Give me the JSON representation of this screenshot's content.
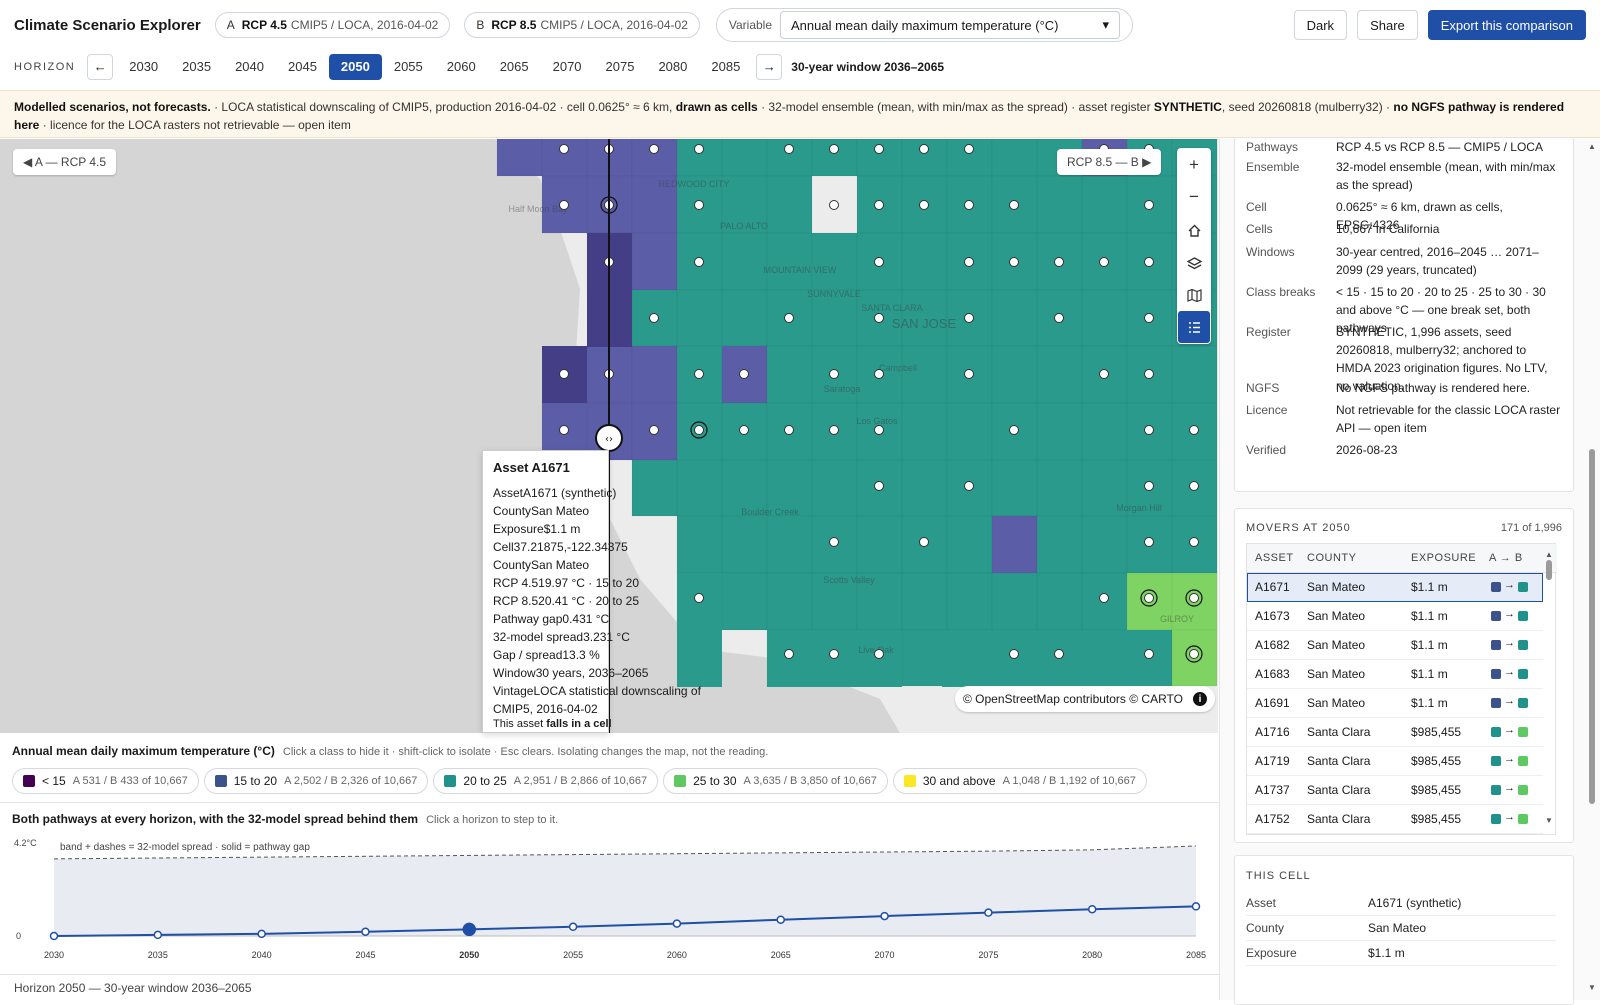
{
  "app": {
    "title": "Climate Scenario Explorer"
  },
  "scenario_a": {
    "letter": "A",
    "name": "RCP 4.5",
    "detail": "CMIP5 / LOCA, 2016-04-02"
  },
  "scenario_b": {
    "letter": "B",
    "name": "RCP 8.5",
    "detail": "CMIP5 / LOCA, 2016-04-02"
  },
  "variable": {
    "label": "Variable",
    "value": "Annual mean daily maximum temperature (°C)"
  },
  "toolbar": {
    "dark": "Dark",
    "share": "Share",
    "export": "Export this comparison"
  },
  "horizon": {
    "label": "HORIZON",
    "years": [
      "2030",
      "2035",
      "2040",
      "2045",
      "2050",
      "2055",
      "2060",
      "2065",
      "2070",
      "2075",
      "2080",
      "2085"
    ],
    "selected": "2050",
    "window": "30-year window 2036–2065"
  },
  "banner": {
    "lead": "Modelled scenarios, not forecasts.",
    "t1": " · LOCA statistical downscaling of CMIP5, production 2016-04-02 · cell 0.0625° ≈ 6 km, ",
    "b1": "drawn as cells",
    "t2": " · 32-model ensemble (mean, with min/max as the spread) · asset register ",
    "b2": "SYNTHETIC",
    "t3": ", seed 20260818 (mulberry32) · ",
    "b3": "no NGFS pathway is rendered here",
    "t4": " · licence for the LOCA rasters not retrievable — open item"
  },
  "map": {
    "label_a": "◀ A — RCP 4.5",
    "label_b": "RCP 8.5 — B ▶",
    "attribution": "© OpenStreetMap contributors © CARTO",
    "places": [
      "Half Moon Bay",
      "REDWOOD CITY",
      "PALO ALTO",
      "MOUNTAIN VIEW",
      "SUNNYVALE",
      "SANTA CLARA",
      "SAN JOSE",
      "Campbell",
      "Saratoga",
      "Los Gatos",
      "Boulder Creek",
      "Morgan Hill",
      "Scotts Valley",
      "Live Oak",
      "GILROY"
    ],
    "colors": {
      "c15": "#433e85",
      "c15b": "#5b5ea6",
      "c20": "#2a9a8c",
      "c25": "#7ed363",
      "c30": "#fde725"
    }
  },
  "tooltip": {
    "title": "Asset A1671",
    "rows": [
      [
        "Asset",
        "A1671 (synthetic)"
      ],
      [
        "County",
        "San Mateo"
      ],
      [
        "Exposure",
        "$1.1 m"
      ],
      [
        "Cell",
        "37.21875,-122.34375"
      ],
      [
        "County",
        "San Mateo"
      ],
      [
        "RCP 4.5",
        "19.97 °C · 15 to 20"
      ],
      [
        "RCP 8.5",
        "20.41 °C · 20 to 25"
      ],
      [
        "Pathway gap",
        "0.431 °C"
      ],
      [
        "32-model spread",
        "3.231 °C"
      ],
      [
        "Gap / spread",
        "13.3 %"
      ],
      [
        "Window",
        "30 years, 2036–2065"
      ],
      [
        "Vintage",
        "LOCA statistical downscaling of"
      ],
      [
        "",
        "CMIP5, 2016-04-02"
      ]
    ],
    "foot_pre": "This asset ",
    "foot_bold": "falls in a cell"
  },
  "legend": {
    "title": "Annual mean daily maximum temperature (°C)",
    "hint": "Click a class to hide it · shift-click to isolate · Esc clears. Isolating changes the map, not the reading.",
    "classes": [
      {
        "label": "< 15",
        "counts": "A 531 / B 433 of 10,667",
        "color": "#440154"
      },
      {
        "label": "15 to 20",
        "counts": "A 2,502 / B 2,326 of 10,667",
        "color": "#3b528b"
      },
      {
        "label": "20 to 25",
        "counts": "A 2,951 / B 2,866 of 10,667",
        "color": "#21918c"
      },
      {
        "label": "25 to 30",
        "counts": "A 3,635 / B 3,850 of 10,667",
        "color": "#5ec962"
      },
      {
        "label": "30 and above",
        "counts": "A 1,048 / B 1,192 of 10,667",
        "color": "#fde725"
      }
    ]
  },
  "chart": {
    "title": "Both pathways at every horizon, with the 32-model spread behind them",
    "hint": "Click a horizon to step to it.",
    "note": "band + dashes = 32-model spread · solid = pathway gap"
  },
  "chart_data": {
    "type": "line",
    "x": [
      2030,
      2035,
      2040,
      2045,
      2050,
      2055,
      2060,
      2065,
      2070,
      2075,
      2080,
      2085
    ],
    "series": [
      {
        "values": [
          0.0,
          0.05,
          0.1,
          0.2,
          0.31,
          0.43,
          0.58,
          0.76,
          0.93,
          1.09,
          1.25,
          1.38
        ]
      }
    ],
    "spread_upper": [
      3.6,
      3.64,
      3.68,
      3.72,
      3.76,
      3.8,
      3.84,
      3.88,
      3.92,
      3.96,
      4.02,
      4.2
    ],
    "ytick_labels": [
      "4.2°C",
      "0"
    ],
    "ylim": [
      0,
      4.2
    ],
    "highlight_x": 2050,
    "legend": "none"
  },
  "details": {
    "rows": [
      [
        "Pathways",
        "RCP 4.5 vs RCP 8.5 — CMIP5 / LOCA"
      ],
      [
        "Ensemble",
        "32-model ensemble (mean, with min/max as the spread)"
      ],
      [
        "Cell",
        "0.0625° ≈ 6 km, drawn as cells, EPSG:4326"
      ],
      [
        "Cells",
        "10,667 in California"
      ],
      [
        "Windows",
        "30-year centred, 2016–2045 … 2071–2099 (29 years, truncated)"
      ],
      [
        "Class breaks",
        "< 15 · 15 to 20 · 20 to 25 · 25 to 30 · 30 and above °C — one break set, both pathways"
      ],
      [
        "Register",
        "SYNTHETIC, 1,996 assets, seed 20260818, mulberry32; anchored to HMDA 2023 origination figures. No LTV, no valuation."
      ],
      [
        "NGFS",
        "No NGFS pathway is rendered here."
      ],
      [
        "Licence",
        "Not retrievable for the classic LOCA raster API — open item"
      ],
      [
        "Verified",
        "2026-08-23"
      ]
    ]
  },
  "movers": {
    "title": "MOVERS AT 2050",
    "count": "171 of 1,996",
    "headers": [
      "ASSET",
      "COUNTY",
      "EXPOSURE",
      "A → B"
    ],
    "rows": [
      [
        "A1671",
        "San Mateo",
        "$1.1 m",
        "#3b528b",
        "#21918c"
      ],
      [
        "A1673",
        "San Mateo",
        "$1.1 m",
        "#3b528b",
        "#21918c"
      ],
      [
        "A1682",
        "San Mateo",
        "$1.1 m",
        "#3b528b",
        "#21918c"
      ],
      [
        "A1683",
        "San Mateo",
        "$1.1 m",
        "#3b528b",
        "#21918c"
      ],
      [
        "A1691",
        "San Mateo",
        "$1.1 m",
        "#3b528b",
        "#21918c"
      ],
      [
        "A1716",
        "Santa Clara",
        "$985,455",
        "#21918c",
        "#5ec962"
      ],
      [
        "A1719",
        "Santa Clara",
        "$985,455",
        "#21918c",
        "#5ec962"
      ],
      [
        "A1737",
        "Santa Clara",
        "$985,455",
        "#21918c",
        "#5ec962"
      ],
      [
        "A1752",
        "Santa Clara",
        "$985,455",
        "#21918c",
        "#5ec962"
      ]
    ]
  },
  "this_cell": {
    "title": "THIS CELL",
    "rows": [
      [
        "Asset",
        "A1671 (synthetic)"
      ],
      [
        "County",
        "San Mateo"
      ],
      [
        "Exposure",
        "$1.1 m"
      ]
    ]
  },
  "footer": {
    "text": "Horizon 2050 — 30-year window 2036–2065"
  }
}
